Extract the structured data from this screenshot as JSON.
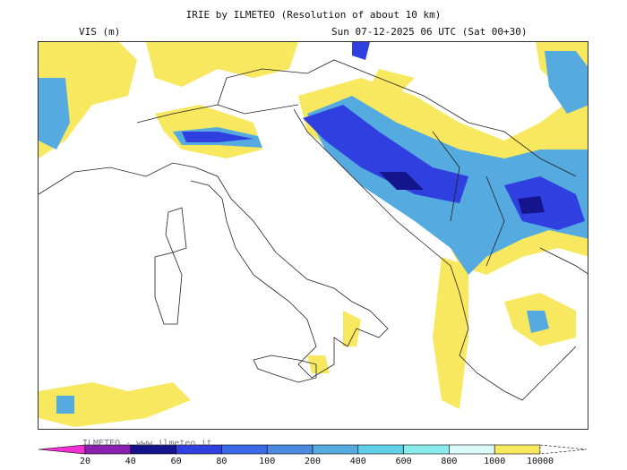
{
  "header": {
    "title": "IRIE by ILMETEO (Resolution of about 10 km)",
    "variable": "VIS (m)",
    "valid_time": "Sun 07-12-2025 06 UTC (Sat 00+30)"
  },
  "watermark": "ILMETEO - www.ilmeteo.it",
  "legend": {
    "labels": [
      "20",
      "40",
      "60",
      "80",
      "100",
      "200",
      "400",
      "600",
      "800",
      "1000",
      "10000"
    ],
    "colors": [
      "#f030d0",
      "#8a20b0",
      "#14148c",
      "#3040e0",
      "#3a6ae8",
      "#4a8ae0",
      "#55aae0",
      "#60d0e8",
      "#88ecec",
      "#dcfafa",
      "#f8e860",
      "#ffffff"
    ]
  }
}
